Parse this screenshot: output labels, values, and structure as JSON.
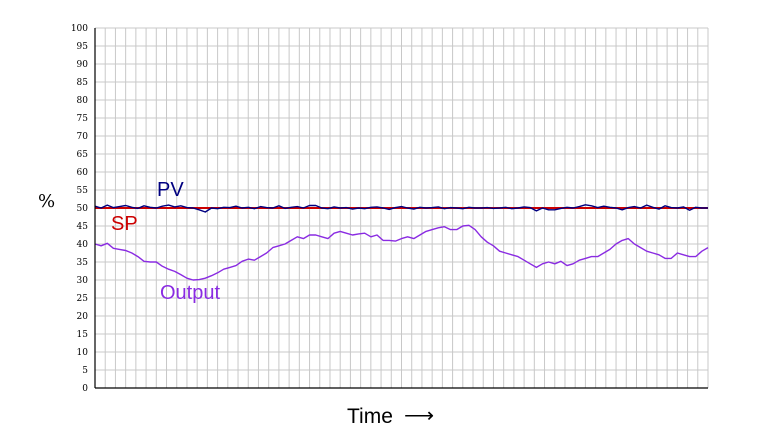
{
  "chart_data": {
    "type": "line",
    "xlabel": "Time",
    "xlabel_arrow": "⟶",
    "ylabel": "%",
    "ylim": [
      0,
      100
    ],
    "xlim": [
      0,
      100
    ],
    "yticks": [
      "0",
      "5",
      "10",
      "15",
      "20",
      "25",
      "30",
      "35",
      "40",
      "45",
      "50",
      "55",
      "60",
      "65",
      "70",
      "75",
      "80",
      "85",
      "90",
      "95",
      "100"
    ],
    "grid": true,
    "colors": {
      "pv": "#000080",
      "sp": "#cc0000",
      "output": "#8a2be2",
      "grid": "#c8c8c8",
      "axis": "#000000"
    },
    "series": [
      {
        "name": "PV",
        "color": "#000080",
        "x": [
          0,
          1,
          2,
          3,
          4,
          5,
          6,
          7,
          8,
          9,
          10,
          11,
          12,
          13,
          14,
          15,
          16,
          17,
          18,
          19,
          20,
          21,
          22,
          23,
          24,
          25,
          26,
          27,
          28,
          29,
          30,
          31,
          32,
          33,
          34,
          35,
          36,
          37,
          38,
          39,
          40,
          41,
          42,
          43,
          44,
          45,
          46,
          47,
          48,
          49,
          50,
          51,
          52,
          53,
          54,
          55,
          56,
          57,
          58,
          59,
          60,
          61,
          62,
          63,
          64,
          65,
          66,
          67,
          68,
          69,
          70,
          71,
          72,
          73,
          74,
          75,
          76,
          77,
          78,
          79,
          80,
          81,
          82,
          83,
          84,
          85,
          86,
          87,
          88,
          89,
          90,
          91,
          92,
          93,
          94,
          95,
          96,
          97,
          98,
          99,
          100
        ],
        "y": [
          50.5,
          50,
          50.8,
          50.1,
          50.4,
          50.7,
          50.2,
          49.9,
          50.6,
          50.2,
          50,
          50.5,
          50.8,
          50.3,
          50.6,
          50.1,
          50,
          49.5,
          48.9,
          50,
          49.8,
          50.2,
          50.1,
          50.5,
          50,
          50.2,
          49.8,
          50.4,
          50.1,
          50,
          50.6,
          49.9,
          50.2,
          50.4,
          50,
          50.7,
          50.7,
          50,
          49.8,
          50.3,
          50,
          50.1,
          49.7,
          50,
          49.8,
          50.2,
          50.3,
          50,
          49.6,
          50.1,
          50.4,
          50,
          49.7,
          50.2,
          50,
          50.1,
          50.3,
          49.8,
          50.1,
          50,
          49.8,
          50.2,
          50,
          50,
          50.1,
          49.9,
          50,
          50.2,
          49.8,
          50,
          50.3,
          50.1,
          49.2,
          50,
          49.5,
          49.5,
          49.9,
          50.2,
          50,
          50.4,
          50.9,
          50.6,
          50.1,
          50.5,
          50.2,
          50,
          49.5,
          50.1,
          50.4,
          50,
          50.8,
          50.2,
          49.7,
          50.6,
          50.1,
          50,
          50.3,
          49.4,
          50.2,
          50,
          50
        ]
      },
      {
        "name": "SP",
        "color": "#cc0000",
        "x": [
          0,
          100
        ],
        "y": [
          50,
          50
        ]
      },
      {
        "name": "Output",
        "color": "#8a2be2",
        "x": [
          0,
          1,
          2,
          3,
          4,
          5,
          6,
          7,
          8,
          9,
          10,
          11,
          12,
          13,
          14,
          15,
          16,
          17,
          18,
          19,
          20,
          21,
          22,
          23,
          24,
          25,
          26,
          27,
          28,
          29,
          30,
          31,
          32,
          33,
          34,
          35,
          36,
          37,
          38,
          39,
          40,
          41,
          42,
          43,
          44,
          45,
          46,
          47,
          48,
          49,
          50,
          51,
          52,
          53,
          54,
          55,
          56,
          57,
          58,
          59,
          60,
          61,
          62,
          63,
          64,
          65,
          66,
          67,
          68,
          69,
          70,
          71,
          72,
          73,
          74,
          75,
          76,
          77,
          78,
          79,
          80,
          81,
          82,
          83,
          84,
          85,
          86,
          87,
          88,
          89,
          90,
          91,
          92,
          93,
          94,
          95,
          96,
          97,
          98,
          99,
          100
        ],
        "y": [
          40,
          39.5,
          40.2,
          38.8,
          38.5,
          38.2,
          37.5,
          36.5,
          35.2,
          35,
          35,
          33.8,
          33,
          32.4,
          31.5,
          30.5,
          30,
          30.1,
          30.5,
          31.2,
          32,
          33,
          33.5,
          34,
          35.2,
          35.8,
          35.5,
          36.5,
          37.5,
          39,
          39.5,
          40,
          41,
          42,
          41.5,
          42.5,
          42.5,
          42,
          41.5,
          43,
          43.5,
          43,
          42.5,
          42.8,
          43,
          42,
          42.5,
          41,
          41,
          40.8,
          41.5,
          42,
          41.5,
          42.5,
          43.5,
          44,
          44.5,
          44.8,
          44,
          44,
          45,
          45.2,
          44,
          42,
          40.5,
          39.5,
          38,
          37.5,
          37,
          36.5,
          35.5,
          34.5,
          33.5,
          34.5,
          35,
          34.5,
          35.2,
          34,
          34.5,
          35.5,
          36,
          36.5,
          36.5,
          37.5,
          38.5,
          40,
          41,
          41.5,
          40,
          39,
          38,
          37.5,
          37,
          36,
          36,
          37.5,
          37,
          36.5,
          36.5,
          38,
          39
        ]
      }
    ],
    "annotations": [
      {
        "text": "PV",
        "color": "#000080"
      },
      {
        "text": "SP",
        "color": "#cc0000"
      },
      {
        "text": "Output",
        "color": "#8a2be2"
      }
    ]
  }
}
